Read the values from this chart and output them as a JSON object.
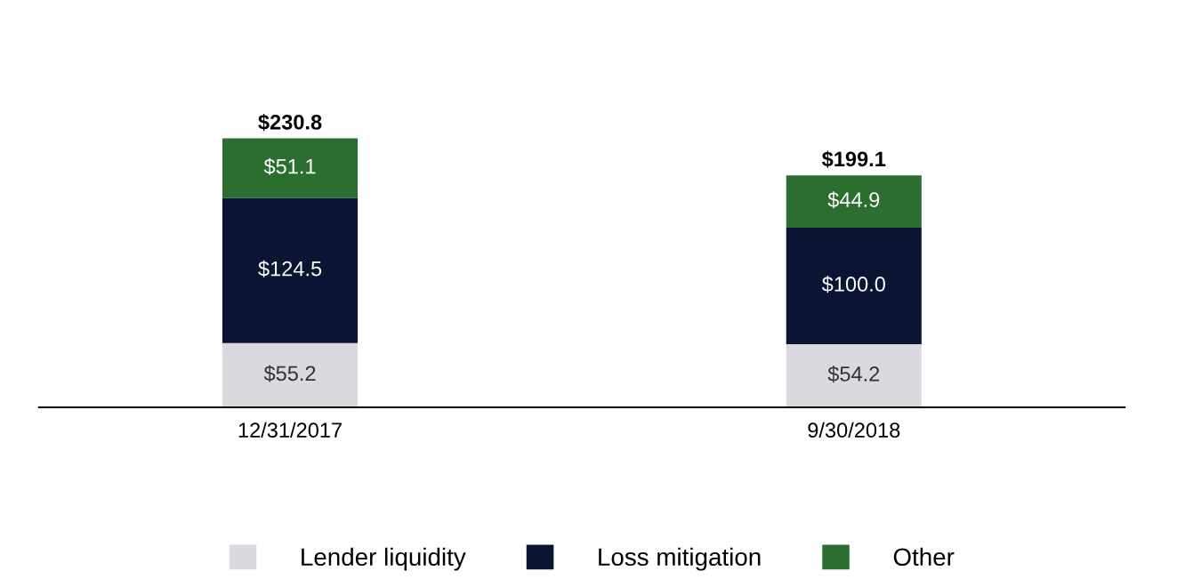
{
  "chart_data": {
    "type": "bar",
    "stacked": true,
    "categories": [
      "12/31/2017",
      "9/30/2018"
    ],
    "series": [
      {
        "name": "Lender liquidity",
        "color": "#d9d9de",
        "values": [
          55.2,
          54.2
        ],
        "value_labels": [
          "$55.2",
          "$54.2"
        ]
      },
      {
        "name": "Loss mitigation",
        "color": "#0b1533",
        "values": [
          124.5,
          100.0
        ],
        "value_labels": [
          "$124.5",
          "$100.0"
        ]
      },
      {
        "name": "Other",
        "color": "#2b6e2f",
        "values": [
          51.1,
          44.9
        ],
        "value_labels": [
          "$51.1",
          "$44.9"
        ]
      }
    ],
    "totals": [
      "$230.8",
      "$199.1"
    ],
    "legend": "bottom",
    "grid": false
  }
}
